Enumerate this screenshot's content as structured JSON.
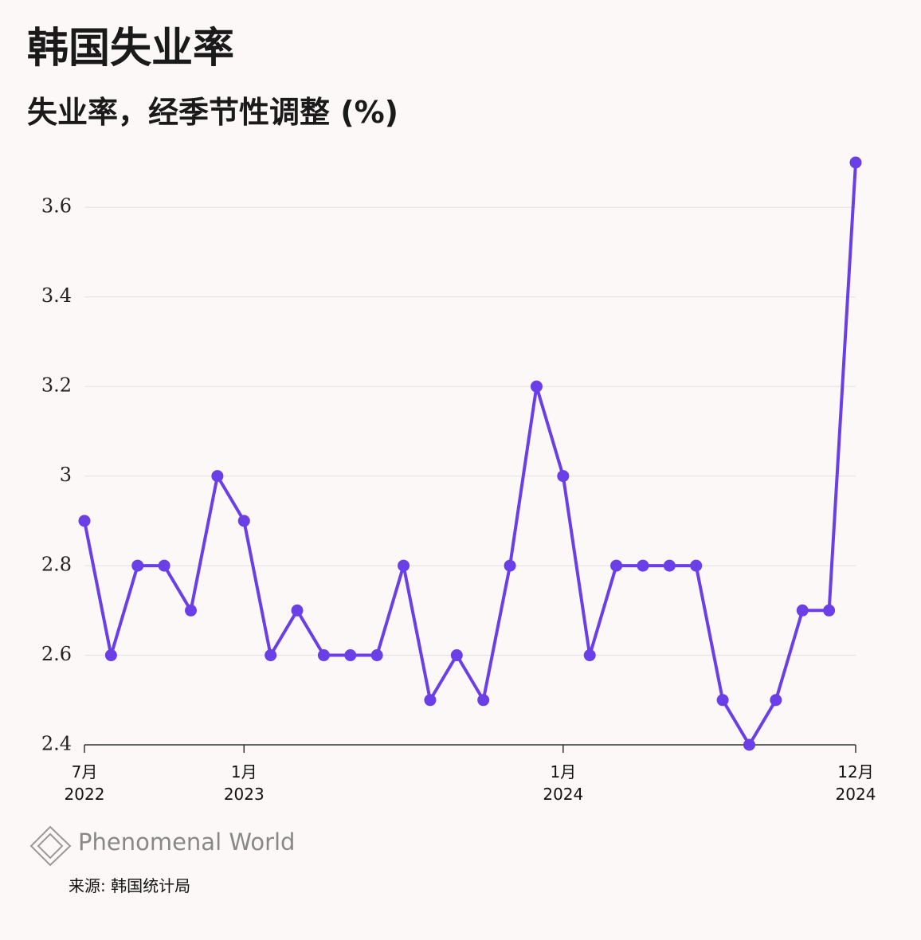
{
  "chart_data": {
    "type": "line",
    "title": "韩国失业率",
    "subtitle": "失业率，经季节性调整 (%)",
    "categories": [
      "7月\n2022",
      null,
      null,
      null,
      null,
      null,
      "1月\n2023",
      null,
      null,
      null,
      null,
      null,
      null,
      null,
      null,
      null,
      null,
      null,
      "1月\n2024",
      null,
      null,
      null,
      null,
      null,
      null,
      null,
      null,
      null,
      null,
      "12月\n2024"
    ],
    "series": [
      {
        "name": "失业率",
        "color": "#6a3fe8",
        "values": [
          2.9,
          2.6,
          2.8,
          2.8,
          2.7,
          3.0,
          2.9,
          2.6,
          2.7,
          2.6,
          2.6,
          2.6,
          2.8,
          2.5,
          2.6,
          2.5,
          2.8,
          3.2,
          3.0,
          2.6,
          2.8,
          2.8,
          2.8,
          2.8,
          2.5,
          2.4,
          2.5,
          2.7,
          2.7,
          3.7
        ]
      }
    ],
    "ylim": [
      2.4,
      3.7
    ],
    "yticks": [
      2.4,
      2.6,
      2.8,
      3,
      3.2,
      3.4,
      3.6
    ],
    "grid": true,
    "brand": "Phenomenal World",
    "source": "来源: 韩国统计局"
  }
}
